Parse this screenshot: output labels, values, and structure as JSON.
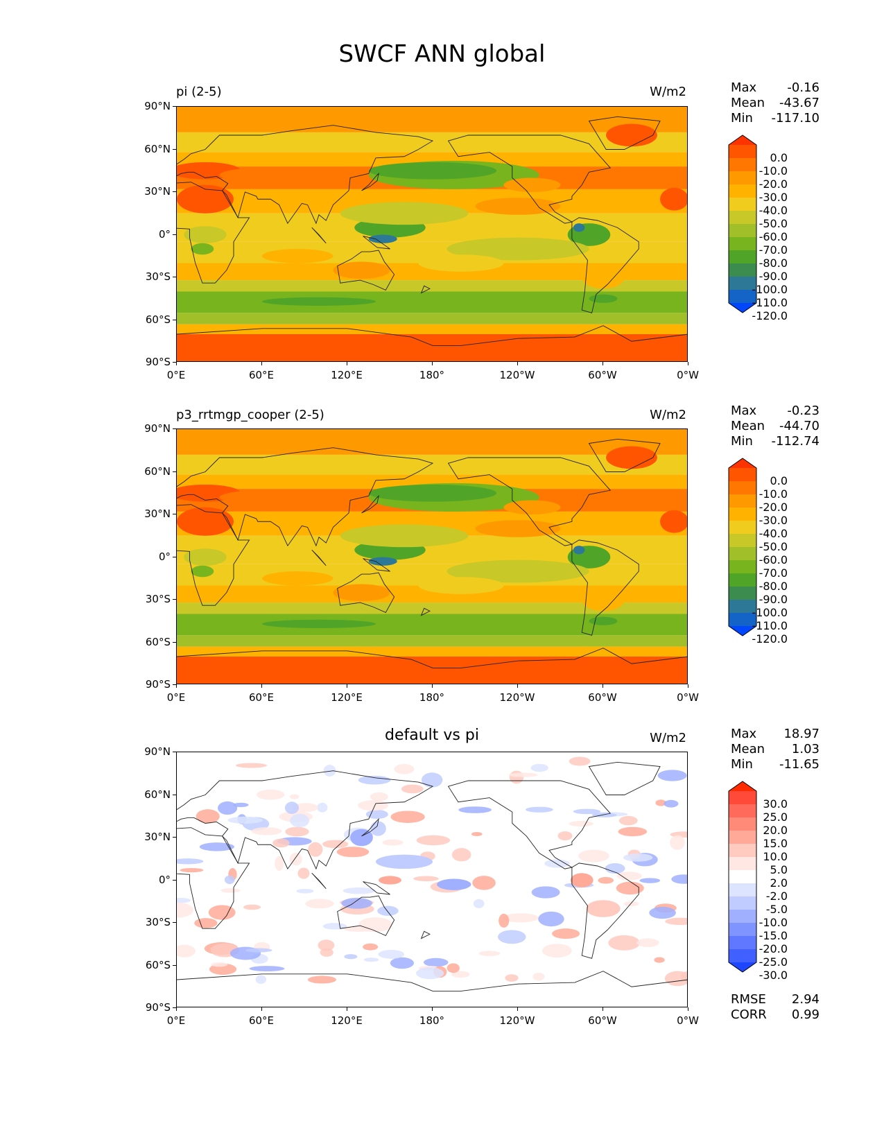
{
  "figure": {
    "title": "SWCF ANN global"
  },
  "x_ticks": [
    "0°E",
    "60°E",
    "120°E",
    "180°",
    "120°W",
    "60°W",
    "0°W"
  ],
  "y_ticks": [
    "90°N",
    "60°N",
    "30°N",
    "0°",
    "30°S",
    "60°S",
    "90°S"
  ],
  "chart_data": [
    {
      "type": "heatmap",
      "title": "pi (2-5)",
      "units": "W/m2",
      "stats": {
        "max_label": "Max",
        "max": "-0.16",
        "mean_label": "Mean",
        "mean": "-43.67",
        "min_label": "Min",
        "min": "-117.10"
      },
      "colorbar": {
        "labels": [
          "0.0",
          "-10.0",
          "-20.0",
          "-30.0",
          "-40.0",
          "-50.0",
          "-60.0",
          "-70.0",
          "-80.0",
          "-90.0",
          "-100.0",
          "-110.0",
          "-120.0"
        ],
        "colors": [
          "#ff3300",
          "#ff5500",
          "#ff7700",
          "#ff9900",
          "#ffb300",
          "#f0cc1e",
          "#c8c828",
          "#a0bf28",
          "#78b41e",
          "#50a528",
          "#3c8c50",
          "#2d7896",
          "#1464c8",
          "#0046ff"
        ]
      },
      "xlim": [
        0,
        360
      ],
      "ylim": [
        -90,
        90
      ]
    },
    {
      "type": "heatmap",
      "title": "p3_rrtmgp_cooper (2-5)",
      "units": "W/m2",
      "stats": {
        "max_label": "Max",
        "max": "-0.23",
        "mean_label": "Mean",
        "mean": "-44.70",
        "min_label": "Min",
        "min": "-112.74"
      },
      "colorbar": {
        "labels": [
          "0.0",
          "-10.0",
          "-20.0",
          "-30.0",
          "-40.0",
          "-50.0",
          "-60.0",
          "-70.0",
          "-80.0",
          "-90.0",
          "-100.0",
          "-110.0",
          "-120.0"
        ],
        "colors": [
          "#ff3300",
          "#ff5500",
          "#ff7700",
          "#ff9900",
          "#ffb300",
          "#f0cc1e",
          "#c8c828",
          "#a0bf28",
          "#78b41e",
          "#50a528",
          "#3c8c50",
          "#2d7896",
          "#1464c8",
          "#0046ff"
        ]
      },
      "xlim": [
        0,
        360
      ],
      "ylim": [
        -90,
        90
      ]
    },
    {
      "type": "heatmap",
      "title": "default vs pi",
      "units": "W/m2",
      "stats": {
        "max_label": "Max",
        "max": "18.97",
        "mean_label": "Mean",
        "mean": "1.03",
        "min_label": "Min",
        "min": "-11.65"
      },
      "metrics": {
        "rmse_label": "RMSE",
        "rmse": "2.94",
        "corr_label": "CORR",
        "corr": "0.99"
      },
      "colorbar": {
        "labels": [
          "30.0",
          "25.0",
          "20.0",
          "15.0",
          "10.0",
          "5.0",
          "2.0",
          "-2.0",
          "-5.0",
          "-10.0",
          "-15.0",
          "-20.0",
          "-25.0",
          "-30.0"
        ],
        "colors": [
          "#ff2a00",
          "#ff4a3a",
          "#ff6a5a",
          "#ff8a78",
          "#ffaa98",
          "#ffcac0",
          "#ffe8e4",
          "#ffffff",
          "#dce4ff",
          "#c0ccff",
          "#a0b0ff",
          "#8094ff",
          "#6078ff",
          "#4060ff",
          "#1e46ff"
        ]
      },
      "xlim": [
        0,
        360
      ],
      "ylim": [
        -90,
        90
      ]
    }
  ]
}
